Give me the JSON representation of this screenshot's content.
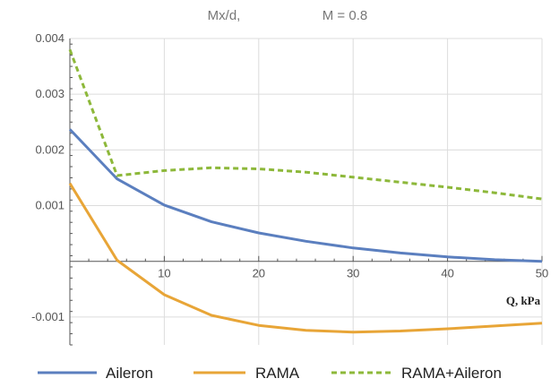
{
  "chart_data": {
    "type": "line",
    "title_parts": [
      "Mx/d,",
      "M = 0.8"
    ],
    "xlabel": "Q, kPa",
    "ylabel": "",
    "xlim": [
      0,
      50
    ],
    "ylim": [
      -0.0015,
      0.004
    ],
    "x_ticks": [
      10,
      20,
      30,
      40,
      50
    ],
    "x_tick_labels": [
      "10",
      "20",
      "30",
      "40",
      "50"
    ],
    "y_ticks": [
      0.004,
      0.003,
      0.002,
      0.001,
      -0.001
    ],
    "y_tick_labels": [
      "0.004",
      "0.003",
      "0.002",
      "0.001",
      "-0.001"
    ],
    "grid": true,
    "legend_position": "bottom",
    "series": [
      {
        "name": "Aileron",
        "color": "#5b7fbf",
        "style": "solid",
        "x": [
          0,
          5,
          10,
          15,
          20,
          25,
          30,
          35,
          40,
          45,
          50
        ],
        "y": [
          0.00237,
          0.00148,
          0.00101,
          0.00071,
          0.00051,
          0.00036,
          0.00024,
          0.00015,
          8e-05,
          3e-05,
          0.0
        ]
      },
      {
        "name": "RAMA",
        "color": "#e8a537",
        "style": "solid",
        "x": [
          0,
          5,
          10,
          15,
          20,
          25,
          30,
          35,
          40,
          45,
          50
        ],
        "y": [
          0.0014,
          2e-05,
          -0.0006,
          -0.00097,
          -0.00115,
          -0.00124,
          -0.00127,
          -0.00125,
          -0.00121,
          -0.00116,
          -0.00111
        ]
      },
      {
        "name": "RAMA+Aileron",
        "color": "#8db83a",
        "style": "dashed",
        "x": [
          0,
          5,
          10,
          15,
          20,
          25,
          30,
          35,
          40,
          45,
          50
        ],
        "y": [
          0.0038,
          0.00154,
          0.00163,
          0.00168,
          0.00166,
          0.0016,
          0.00151,
          0.00142,
          0.00133,
          0.00123,
          0.00112
        ]
      }
    ]
  }
}
